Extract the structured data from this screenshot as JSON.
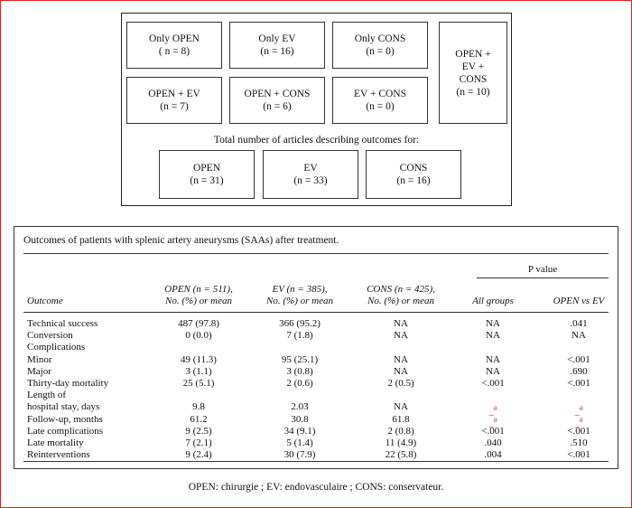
{
  "diagram": {
    "boxes": [
      {
        "name": "Only OPEN",
        "n": "( n = 8)"
      },
      {
        "name": "Only EV",
        "n": "(n = 16)"
      },
      {
        "name": "Only CONS",
        "n": "(n = 0)"
      },
      {
        "name": "OPEN + EV",
        "n": "(n = 7)"
      },
      {
        "name": "OPEN + CONS",
        "n": "(n = 6)"
      },
      {
        "name": "EV + CONS",
        "n": "(n = 0)"
      }
    ],
    "all_three": {
      "line1": "OPEN +",
      "line2": "EV +",
      "line3": "CONS",
      "n": "(n = 10)"
    },
    "total_label": "Total number of articles describing outcomes for:",
    "totals": [
      {
        "name": "OPEN",
        "n": "(n = 31)"
      },
      {
        "name": "EV",
        "n": "(n = 33)"
      },
      {
        "name": "CONS",
        "n": "(n = 16)"
      }
    ]
  },
  "table": {
    "caption": "Outcomes of patients with splenic artery aneurysms (SAAs) after treatment.",
    "pvalue_header": "P value",
    "headers": {
      "outcome": "Outcome",
      "open_1": "OPEN (n = 511),",
      "open_2": "No. (%) or mean",
      "ev_1": "EV (n = 385),",
      "ev_2": "No. (%) or mean",
      "cons_1": "CONS (n = 425),",
      "cons_2": "No. (%) or mean",
      "all_groups": "All groups",
      "open_vs_ev": "OPEN vs EV"
    },
    "rows": [
      {
        "label": "Technical success",
        "open": "487 (97.8)",
        "ev": "366 (95.2)",
        "cons": "NA",
        "all": "NA",
        "ove": ".041"
      },
      {
        "label": "Conversion",
        "open": "0 (0.0)",
        "ev": "7 (1.8)",
        "cons": "NA",
        "all": "NA",
        "ove": "NA"
      },
      {
        "label": "Complications",
        "open": "",
        "ev": "",
        "cons": "",
        "all": "",
        "ove": ""
      },
      {
        "label": "Minor",
        "open": "49 (11.3)",
        "ev": "95 (25.1)",
        "cons": "NA",
        "all": "NA",
        "ove": "<.001"
      },
      {
        "label": "Major",
        "open": "3 (1.1)",
        "ev": "3 (0.8)",
        "cons": "NA",
        "all": "NA",
        "ove": ".690"
      },
      {
        "label": "Thirty-day mortality",
        "open": "25 (5.1)",
        "ev": "2 (0.6)",
        "cons": "2 (0.5)",
        "all": "<.001",
        "ove": "<.001"
      },
      {
        "label": "Length of",
        "open": "",
        "ev": "",
        "cons": "",
        "all": "",
        "ove": ""
      },
      {
        "label": "hospital stay, days",
        "open": "9.8",
        "ev": "2.03",
        "cons": "NA",
        "all": "_a",
        "ove": "_a"
      },
      {
        "label": "Follow-up, months",
        "open": "61.2",
        "ev": "30.8",
        "cons": "61.8",
        "all": "_a",
        "ove": "_a"
      },
      {
        "label": "Late complications",
        "open": "9 (2.5)",
        "ev": "34 (9.1)",
        "cons": "2 (0.8)",
        "all": "<.001",
        "ove": "<.001"
      },
      {
        "label": "Late mortality",
        "open": "7 (2.1)",
        "ev": "5 (1.4)",
        "cons": "11 (4.9)",
        "all": ".040",
        "ove": ".510"
      },
      {
        "label": "Reinterventions",
        "open": "9 (2.4)",
        "ev": "30 (7.9)",
        "cons": "22 (5.8)",
        "all": ".004",
        "ove": "<.001"
      }
    ]
  },
  "footnote": "OPEN: chirurgie ; EV: endovasculaire ; CONS: conservateur."
}
